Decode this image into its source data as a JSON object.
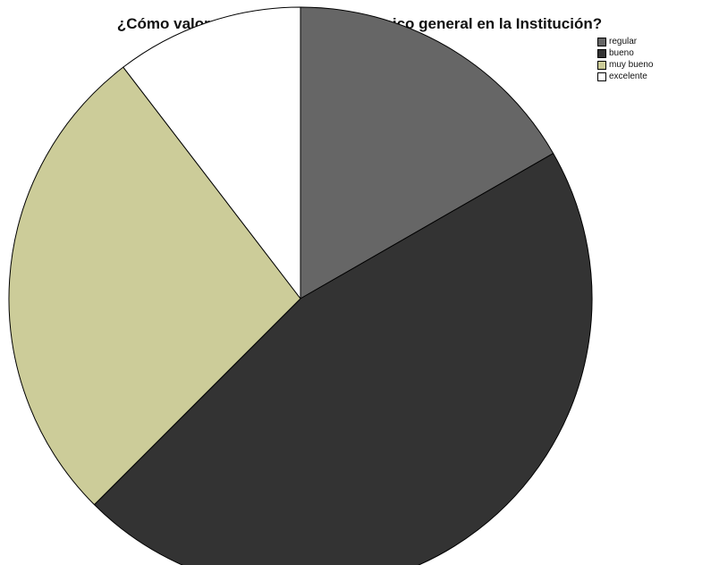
{
  "chart_data": {
    "type": "pie",
    "title": "¿Cómo valora su rendimiento académico general en la Institución?",
    "categories": [
      "regular",
      "bueno",
      "muy bueno",
      "excelente"
    ],
    "values": [
      16.7,
      45.8,
      27.1,
      10.4
    ],
    "colors": [
      "#666666",
      "#333333",
      "#cccc99",
      "#ffffff"
    ],
    "start_angle_deg": 0,
    "direction": "clockwise",
    "legend_position": "top-right",
    "data_labels": false
  }
}
